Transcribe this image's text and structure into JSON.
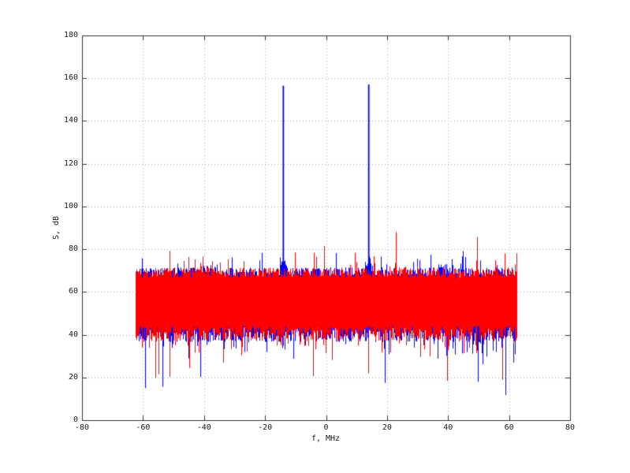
{
  "figure": {
    "background": "#ffffff",
    "title": ""
  },
  "chart_data": {
    "type": "line",
    "title": "",
    "xlabel": "f, MHz",
    "ylabel": "S, dB",
    "xlim": [
      -80,
      80
    ],
    "ylim": [
      0,
      180
    ],
    "xticks": [
      -80,
      -60,
      -40,
      -20,
      0,
      20,
      40,
      60,
      80
    ],
    "yticks": [
      0,
      20,
      40,
      60,
      80,
      100,
      120,
      140,
      160,
      180
    ],
    "grid": "dotted",
    "grid_color": "#b0b0b0",
    "frame_color": "#333333",
    "tick_label_color": "#1a1a1a",
    "legend": "none",
    "description": "Two overlaid power spectra: blue signal spectrum with two strong tones at ±14 MHz (~157 dB) and red noise spectrum; both occupy a ±62.5 MHz band with noise floor between ~42 and ~70 dB",
    "series": [
      {
        "name": "signal-spectrum-blue",
        "color": "#0000ff",
        "band_mhz": [
          -62.5,
          62.5
        ],
        "noise_top_jitter_db": [
          66.5,
          71.5
        ],
        "noise_bottom_db": [
          36.5,
          43.5
        ],
        "up_spike": {
          "probability": 0.06,
          "extra_db": [
            2,
            8.5
          ]
        },
        "down_spike": {
          "probability": 0.1,
          "extra_db": [
            2,
            9
          ]
        },
        "deep_down_spike": {
          "probability": 0.025,
          "extra_db": [
            8,
            26
          ]
        },
        "min_db": 8,
        "tone_peaks": [
          {
            "f_mhz": -14,
            "peak_db": 156.5
          },
          {
            "f_mhz": 14,
            "peak_db": 157.0
          }
        ],
        "tone_skirts": [
          {
            "f_mhz": -14,
            "peak_extra_db": 8.5,
            "width_mhz": 0.9
          },
          {
            "f_mhz": 14,
            "peak_extra_db": 9.0,
            "width_mhz": 0.9
          },
          {
            "f_mhz": -38.5,
            "peak_extra_db": 2.5,
            "width_mhz": 2.5
          },
          {
            "f_mhz": 38.5,
            "peak_extra_db": 2.5,
            "width_mhz": 2.5
          }
        ]
      },
      {
        "name": "noise-spectrum-red",
        "color": "#ff0000",
        "band_mhz": [
          -62.5,
          62.5
        ],
        "noise_top_jitter_db": [
          66.5,
          71.5
        ],
        "noise_bottom_db": [
          37,
          44
        ],
        "up_spike": {
          "probability": 0.06,
          "extra_db": [
            2,
            8.5
          ]
        },
        "rare_up_spike": {
          "probability": 0.012,
          "extra_db": [
            9,
            17
          ]
        },
        "down_spike": {
          "probability": 0.1,
          "extra_db": [
            2,
            9
          ]
        },
        "deep_down_spike": {
          "probability": 0.022,
          "extra_db": [
            8,
            22
          ]
        },
        "min_db": 13,
        "tone_peaks": [],
        "tone_skirts": []
      }
    ]
  }
}
